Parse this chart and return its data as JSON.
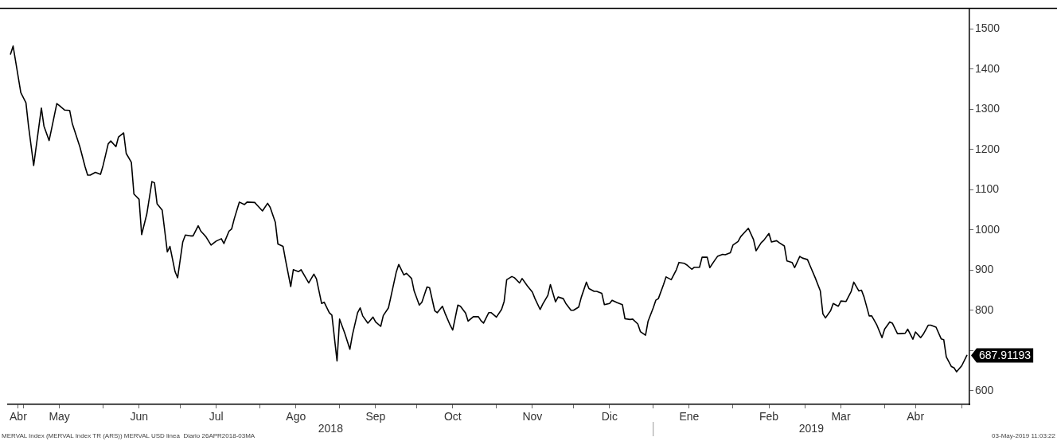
{
  "chart_data": {
    "type": "line",
    "x": [
      "2018-04-26",
      "2018-04-27",
      "2018-04-30",
      "2018-05-02",
      "2018-05-03",
      "2018-05-05",
      "2018-05-08",
      "2018-05-09",
      "2018-05-11",
      "2018-05-12",
      "2018-05-14",
      "2018-05-15",
      "2018-05-17",
      "2018-05-19",
      "2018-05-20",
      "2018-05-23",
      "2018-05-25",
      "2018-05-26",
      "2018-05-27",
      "2018-05-29",
      "2018-05-31",
      "2018-06-01",
      "2018-06-03",
      "2018-06-04",
      "2018-06-06",
      "2018-06-07",
      "2018-06-09",
      "2018-06-10",
      "2018-06-12",
      "2018-06-13",
      "2018-06-15",
      "2018-06-16",
      "2018-06-18",
      "2018-06-20",
      "2018-06-21",
      "2018-06-22",
      "2018-06-24",
      "2018-06-26",
      "2018-06-27",
      "2018-06-29",
      "2018-06-30",
      "2018-07-02",
      "2018-07-03",
      "2018-07-05",
      "2018-07-06",
      "2018-07-08",
      "2018-07-09",
      "2018-07-11",
      "2018-07-13",
      "2018-07-15",
      "2018-07-17",
      "2018-07-18",
      "2018-07-20",
      "2018-07-21",
      "2018-07-22",
      "2018-07-24",
      "2018-07-26",
      "2018-07-27",
      "2018-07-30",
      "2018-07-31",
      "2018-08-02",
      "2018-08-04",
      "2018-08-05",
      "2018-08-07",
      "2018-08-08",
      "2018-08-10",
      "2018-08-11",
      "2018-08-13",
      "2018-08-14",
      "2018-08-16",
      "2018-08-17",
      "2018-08-19",
      "2018-08-20",
      "2018-08-22",
      "2018-08-23",
      "2018-08-25",
      "2018-08-26",
      "2018-08-28",
      "2018-08-29",
      "2018-08-31",
      "2018-09-01",
      "2018-09-03",
      "2018-09-05",
      "2018-09-06",
      "2018-09-08",
      "2018-09-09",
      "2018-09-10",
      "2018-09-12",
      "2018-09-14",
      "2018-09-15",
      "2018-09-17",
      "2018-09-18",
      "2018-09-20",
      "2018-09-21",
      "2018-09-23",
      "2018-09-24",
      "2018-09-26",
      "2018-09-27",
      "2018-09-29",
      "2018-09-30",
      "2018-10-02",
      "2018-10-03",
      "2018-10-05",
      "2018-10-06",
      "2018-10-08",
      "2018-10-09",
      "2018-10-11",
      "2018-10-12",
      "2018-10-14",
      "2018-10-15",
      "2018-10-17",
      "2018-10-18",
      "2018-10-20",
      "2018-10-21",
      "2018-10-23",
      "2018-10-25",
      "2018-10-26",
      "2018-10-27",
      "2018-10-29",
      "2018-10-30",
      "2018-11-01",
      "2018-11-03",
      "2018-11-04",
      "2018-11-05",
      "2018-11-07",
      "2018-11-08",
      "2018-11-10",
      "2018-11-11",
      "2018-11-13",
      "2018-11-15",
      "2018-11-16",
      "2018-11-18",
      "2018-11-19",
      "2018-11-21",
      "2018-11-22",
      "2018-11-24",
      "2018-11-25",
      "2018-11-27",
      "2018-11-28",
      "2018-11-30",
      "2018-12-01",
      "2018-12-03",
      "2018-12-04",
      "2018-12-06",
      "2018-12-07",
      "2018-12-09",
      "2018-12-10",
      "2018-12-12",
      "2018-12-13",
      "2018-12-15",
      "2018-12-16",
      "2018-12-18",
      "2018-12-20",
      "2018-12-21",
      "2018-12-23",
      "2018-12-24",
      "2018-12-26",
      "2018-12-27",
      "2018-12-29",
      "2018-12-30",
      "2019-01-01",
      "2019-01-02",
      "2019-01-03",
      "2019-01-05",
      "2019-01-06",
      "2019-01-08",
      "2019-01-10",
      "2019-01-11",
      "2019-01-13",
      "2019-01-14",
      "2019-01-16",
      "2019-01-17",
      "2019-01-19",
      "2019-01-20",
      "2019-01-22",
      "2019-01-23",
      "2019-01-25",
      "2019-01-26",
      "2019-01-28",
      "2019-01-29",
      "2019-01-31",
      "2019-02-01",
      "2019-02-03",
      "2019-02-04",
      "2019-02-06",
      "2019-02-07",
      "2019-02-09",
      "2019-02-10",
      "2019-02-12",
      "2019-02-13",
      "2019-02-15",
      "2019-02-16",
      "2019-02-18",
      "2019-02-19",
      "2019-02-21",
      "2019-02-22",
      "2019-02-24",
      "2019-02-25",
      "2019-02-27",
      "2019-02-28",
      "2019-03-02",
      "2019-03-03",
      "2019-03-05",
      "2019-03-07",
      "2019-03-08",
      "2019-03-09",
      "2019-03-11",
      "2019-03-12",
      "2019-03-14",
      "2019-03-15",
      "2019-03-17",
      "2019-03-19",
      "2019-03-20",
      "2019-03-22",
      "2019-03-23",
      "2019-03-24",
      "2019-03-26",
      "2019-03-27",
      "2019-03-29",
      "2019-03-31",
      "2019-04-01",
      "2019-04-03",
      "2019-04-04",
      "2019-04-06",
      "2019-04-07",
      "2019-04-09",
      "2019-04-10",
      "2019-04-12",
      "2019-04-13",
      "2019-04-15",
      "2019-04-16",
      "2019-04-18",
      "2019-04-19",
      "2019-04-21",
      "2019-04-23",
      "2019-04-24",
      "2019-04-25",
      "2019-04-27",
      "2019-04-28",
      "2019-04-29",
      "2019-05-01",
      "2019-05-03"
    ],
    "series": [
      {
        "color": "#000000",
        "values": [
          1437,
          1457,
          1341,
          1316,
          1258,
          1160,
          1303,
          1258,
          1222,
          1252,
          1314,
          1309,
          1298,
          1297,
          1265,
          1206,
          1157,
          1136,
          1136,
          1143,
          1138,
          1160,
          1214,
          1221,
          1207,
          1231,
          1241,
          1190,
          1168,
          1089,
          1076,
          988,
          1039,
          1120,
          1117,
          1065,
          1049,
          945,
          959,
          896,
          881,
          970,
          987,
          985,
          985,
          1010,
          997,
          983,
          962,
          972,
          978,
          966,
          997,
          1002,
          1027,
          1069,
          1063,
          1069,
          1068,
          1061,
          1047,
          1066,
          1056,
          1019,
          965,
          959,
          924,
          859,
          901,
          896,
          901,
          879,
          868,
          890,
          878,
          817,
          820,
          794,
          788,
          674,
          778,
          743,
          703,
          739,
          794,
          806,
          786,
          768,
          783,
          771,
          760,
          787,
          806,
          835,
          894,
          914,
          888,
          892,
          879,
          848,
          813,
          820,
          858,
          856,
          799,
          794,
          810,
          793,
          763,
          751,
          813,
          810,
          793,
          773,
          784,
          784,
          774,
          768,
          794,
          794,
          783,
          802,
          822,
          876,
          884,
          881,
          868,
          879,
          861,
          845,
          829,
          802,
          815,
          837,
          864,
          821,
          833,
          829,
          817,
          800,
          800,
          808,
          832,
          870,
          854,
          847,
          847,
          842,
          814,
          817,
          825,
          819,
          814,
          779,
          777,
          778,
          766,
          747,
          738,
          773,
          806,
          825,
          829,
          864,
          883,
          876,
          901,
          919,
          917,
          913,
          902,
          907,
          907,
          932,
          932,
          906,
          925,
          934,
          939,
          938,
          943,
          962,
          971,
          983,
          997,
          1004,
          976,
          948,
          968,
          974,
          991,
          970,
          973,
          968,
          960,
          923,
          919,
          906,
          934,
          930,
          926,
          911,
          881,
          848,
          791,
          781,
          799,
          817,
          810,
          823,
          822,
          847,
          870,
          848,
          850,
          833,
          786,
          786,
          763,
          732,
          753,
          771,
          768,
          742,
          742,
          743,
          753,
          728,
          746,
          732,
          740,
          763,
          763,
          758,
          729,
          727,
          684,
          660,
          657,
          647,
          662,
          687.91193
        ]
      }
    ],
    "xlim": [
      "2018-04-25",
      "2019-05-04"
    ],
    "xticks": [
      {
        "value": "2018-04-29",
        "label": "Abr"
      },
      {
        "value": "2018-05-01",
        "label": null
      },
      {
        "value": "2018-05-15",
        "label": "May"
      },
      {
        "value": "2018-06-01",
        "label": null
      },
      {
        "value": "2018-06-15",
        "label": "Jun"
      },
      {
        "value": "2018-07-01",
        "label": null
      },
      {
        "value": "2018-07-15",
        "label": "Jul"
      },
      {
        "value": "2018-08-01",
        "label": null
      },
      {
        "value": "2018-08-15",
        "label": "Ago"
      },
      {
        "value": "2018-09-01",
        "label": null
      },
      {
        "value": "2018-09-15",
        "label": "Sep"
      },
      {
        "value": "2018-10-01",
        "label": null
      },
      {
        "value": "2018-10-15",
        "label": "Oct"
      },
      {
        "value": "2018-11-01",
        "label": null
      },
      {
        "value": "2018-11-15",
        "label": "Nov"
      },
      {
        "value": "2018-12-01",
        "label": null
      },
      {
        "value": "2018-12-15",
        "label": "Dic"
      },
      {
        "value": "2019-01-01",
        "label": null
      },
      {
        "value": "2019-01-15",
        "label": "Ene"
      },
      {
        "value": "2019-02-01",
        "label": null
      },
      {
        "value": "2019-02-15",
        "label": "Feb"
      },
      {
        "value": "2019-03-01",
        "label": null
      },
      {
        "value": "2019-03-15",
        "label": "Mar"
      },
      {
        "value": "2019-04-01",
        "label": null
      },
      {
        "value": "2019-04-13",
        "label": "Abr"
      },
      {
        "value": "2019-05-01",
        "label": null
      }
    ],
    "ylim": [
      566,
      1551
    ],
    "yticks": [
      600,
      {
        "value": 700,
        "label": null
      },
      800,
      900,
      1000,
      1100,
      1200,
      1300,
      1400,
      1500
    ],
    "grid": false,
    "legend": false,
    "annotations": [
      "2018",
      "2019",
      "MERVAL Index (MERVAL Index TR (ARS)) MERVAL USD linea  Diario 26APR2018-03MA",
      "03-May-2019 11:03:22",
      {
        "text": "687.91193",
        "x": "2019-05-03",
        "y": 687.91193
      }
    ]
  }
}
